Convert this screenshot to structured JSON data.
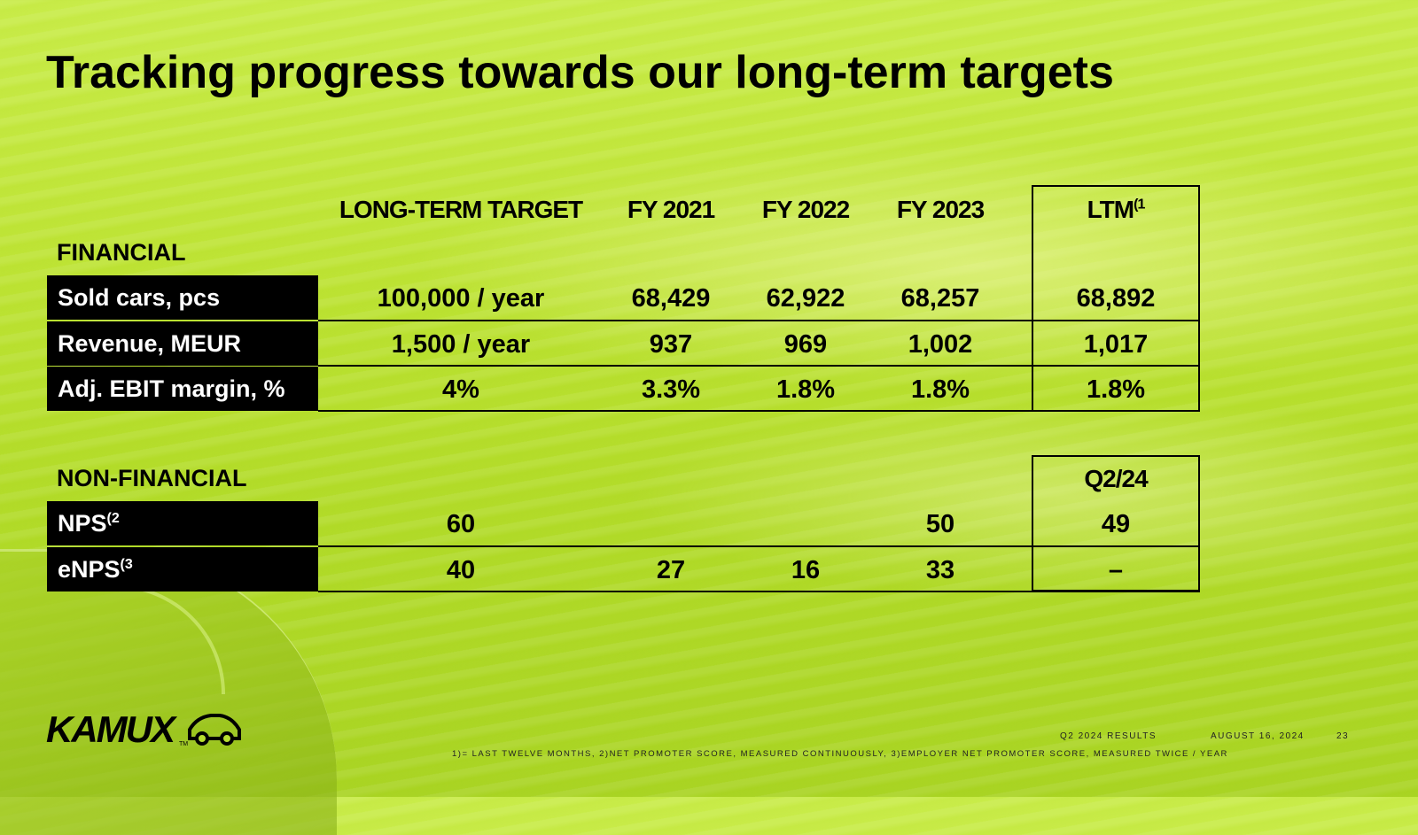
{
  "title": "Tracking progress towards our long-term targets",
  "columns": {
    "target": "LONG-TERM TARGET",
    "fy2021": "FY 2021",
    "fy2022": "FY 2022",
    "fy2023": "FY 2023",
    "ltm": "LTM",
    "ltm_note": "(1"
  },
  "financial": {
    "label": "FINANCIAL",
    "rows": [
      {
        "label": "Sold cars, pcs",
        "target": "100,000 / year",
        "fy2021": "68,429",
        "fy2022": "62,922",
        "fy2023": "68,257",
        "ltm": "68,892"
      },
      {
        "label": "Revenue, MEUR",
        "target": "1,500 / year",
        "fy2021": "937",
        "fy2022": "969",
        "fy2023": "1,002",
        "ltm": "1,017"
      },
      {
        "label": "Adj. EBIT margin, %",
        "target": "4%",
        "fy2021": "3.3%",
        "fy2022": "1.8%",
        "fy2023": "1.8%",
        "ltm": "1.8%"
      }
    ]
  },
  "non_financial": {
    "label": "NON-FINANCIAL",
    "latest_header": "Q2/24",
    "rows": [
      {
        "label": "NPS",
        "note": "(2",
        "target": "60",
        "fy2021": "",
        "fy2022": "",
        "fy2023": "50",
        "latest": "49"
      },
      {
        "label": "eNPS",
        "note": "(3",
        "target": "40",
        "fy2021": "27",
        "fy2022": "16",
        "fy2023": "33",
        "latest": "–"
      }
    ]
  },
  "logo": {
    "text": "KAMUX",
    "tm": "TM"
  },
  "footer": {
    "report": "Q2 2024 RESULTS",
    "date": "AUGUST 16, 2024",
    "page": "23",
    "notes": "1)= LAST TWELVE MONTHS, 2)NET PROMOTER SCORE, MEASURED CONTINUOUSLY, 3)EMPLOYER NET PROMOTER SCORE, MEASURED TWICE / YEAR"
  },
  "colors": {
    "background": "#b8df2e",
    "text": "#000000",
    "label_bg": "#000000",
    "label_text": "#ffffff"
  }
}
